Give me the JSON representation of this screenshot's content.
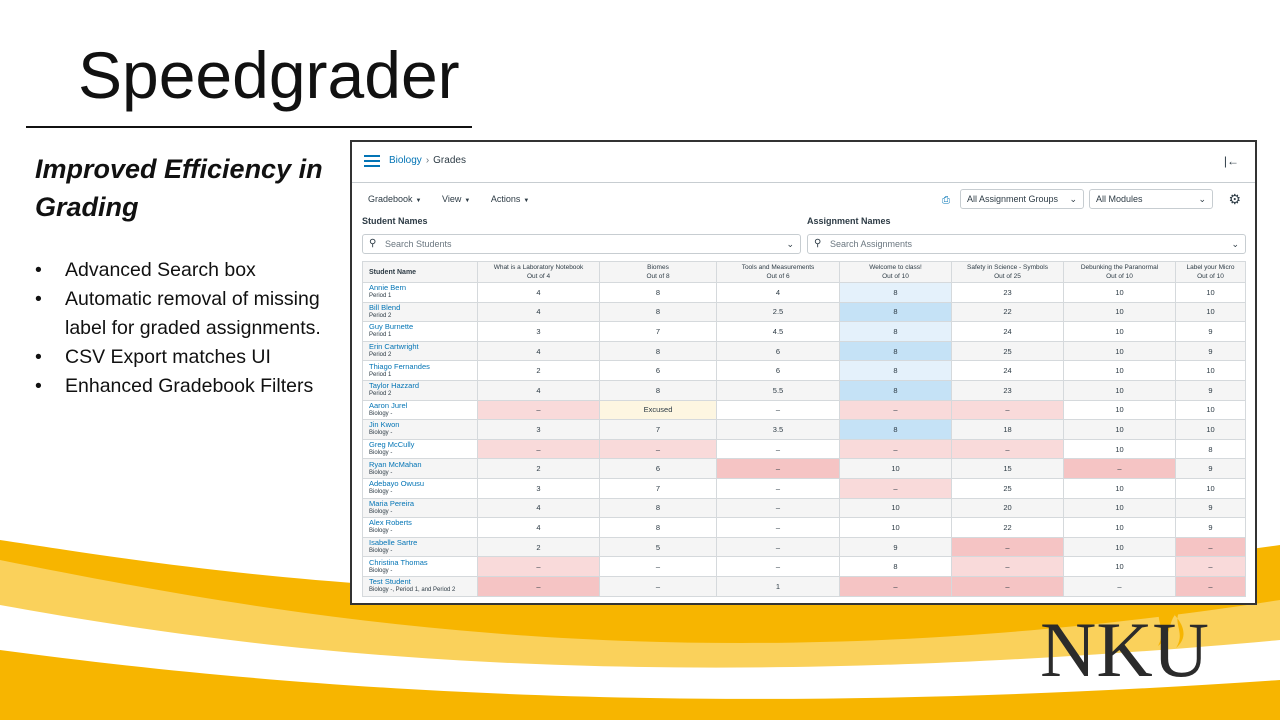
{
  "slide": {
    "title": "Speedgrader",
    "subtitle": "Improved Efficiency in Grading",
    "bullets": [
      "Advanced Search box",
      "Automatic removal of missing label for graded assignments.",
      "CSV Export matches UI",
      "Enhanced Gradebook Filters"
    ],
    "logo_text": "NKU",
    "colors": {
      "gold": "#F7B500",
      "logo": "#2b2b2b"
    }
  },
  "app": {
    "breadcrumb": {
      "course": "Biology",
      "separator": "›",
      "page": "Grades"
    },
    "toolbar": {
      "gradebook": "Gradebook",
      "view": "View",
      "actions": "Actions"
    },
    "filters": {
      "assignment_groups": "All Assignment Groups",
      "modules": "All Modules"
    },
    "student_names_label": "Student Names",
    "assignment_names_label": "Assignment Names",
    "search_students_placeholder": "Search Students",
    "search_assignments_placeholder": "Search Assignments",
    "colors": {
      "link": "#0374b5",
      "late": "#f9dada",
      "missing": "#f5c4c4",
      "excused": "#fdf6e1",
      "selected_col": "#c5e2f6"
    }
  },
  "gradebook": {
    "student_header": "Student Name",
    "columns": [
      {
        "name": "What is a Laboratory Notebook",
        "points": "Out of 4"
      },
      {
        "name": "Biomes",
        "points": "Out of 8"
      },
      {
        "name": "Tools and Measurements",
        "points": "Out of 6"
      },
      {
        "name": "Welcome to class!",
        "points": "Out of 10"
      },
      {
        "name": "Safety in Science - Symbols",
        "points": "Out of 25"
      },
      {
        "name": "Debunking the Paranormal",
        "points": "Out of 10"
      },
      {
        "name": "Label your Micro",
        "points": "Out of 10"
      }
    ],
    "rows": [
      {
        "name": "Annie Bern",
        "section": "Period 1",
        "grades": [
          "4",
          "8",
          "4",
          "8",
          "23",
          "10",
          "10"
        ],
        "states": [
          "",
          "",
          "",
          "light",
          "",
          "",
          ""
        ]
      },
      {
        "name": "Bill Blend",
        "section": "Period 2",
        "grades": [
          "4",
          "8",
          "2.5",
          "8",
          "22",
          "10",
          "10"
        ],
        "states": [
          "",
          "",
          "",
          "blue",
          "",
          "",
          ""
        ]
      },
      {
        "name": "Guy Burnette",
        "section": "Period 1",
        "grades": [
          "3",
          "7",
          "4.5",
          "8",
          "24",
          "10",
          "9"
        ],
        "states": [
          "",
          "",
          "",
          "light",
          "",
          "",
          ""
        ]
      },
      {
        "name": "Erin Cartwright",
        "section": "Period 2",
        "grades": [
          "4",
          "8",
          "6",
          "8",
          "25",
          "10",
          "9"
        ],
        "states": [
          "",
          "",
          "",
          "blue",
          "",
          "",
          ""
        ]
      },
      {
        "name": "Thiago Fernandes",
        "section": "Period 1",
        "grades": [
          "2",
          "6",
          "6",
          "8",
          "24",
          "10",
          "10"
        ],
        "states": [
          "",
          "",
          "",
          "light",
          "",
          "",
          ""
        ]
      },
      {
        "name": "Taylor Hazzard",
        "section": "Period 2",
        "grades": [
          "4",
          "8",
          "5.5",
          "8",
          "23",
          "10",
          "9"
        ],
        "states": [
          "",
          "",
          "",
          "blue",
          "",
          "",
          ""
        ]
      },
      {
        "name": "Aaron Jurel",
        "section": "Biology -",
        "grades": [
          "–",
          "Excused",
          "–",
          "–",
          "–",
          "10",
          "10"
        ],
        "states": [
          "late",
          "excused",
          "",
          "late",
          "late",
          "",
          ""
        ]
      },
      {
        "name": "Jin Kwon",
        "section": "Biology -",
        "grades": [
          "3",
          "7",
          "3.5",
          "8",
          "18",
          "10",
          "10"
        ],
        "states": [
          "",
          "",
          "",
          "blue",
          "",
          "",
          ""
        ]
      },
      {
        "name": "Greg McCully",
        "section": "Biology -",
        "grades": [
          "–",
          "–",
          "–",
          "–",
          "–",
          "10",
          "8"
        ],
        "states": [
          "late",
          "late",
          "",
          "late",
          "late",
          "",
          ""
        ]
      },
      {
        "name": "Ryan McMahan",
        "section": "Biology -",
        "grades": [
          "2",
          "6",
          "–",
          "10",
          "15",
          "–",
          "9"
        ],
        "states": [
          "",
          "",
          "missing",
          "",
          "",
          "missing",
          ""
        ]
      },
      {
        "name": "Adebayo Owusu",
        "section": "Biology -",
        "grades": [
          "3",
          "7",
          "–",
          "–",
          "25",
          "10",
          "10"
        ],
        "states": [
          "",
          "",
          "",
          "late",
          "",
          "",
          ""
        ]
      },
      {
        "name": "Maria Pereira",
        "section": "Biology -",
        "grades": [
          "4",
          "8",
          "–",
          "10",
          "20",
          "10",
          "9"
        ],
        "states": [
          "",
          "",
          "",
          "",
          "",
          "",
          ""
        ]
      },
      {
        "name": "Alex Roberts",
        "section": "Biology -",
        "grades": [
          "4",
          "8",
          "–",
          "10",
          "22",
          "10",
          "9"
        ],
        "states": [
          "",
          "",
          "",
          "",
          "",
          "",
          ""
        ]
      },
      {
        "name": "Isabelle Sartre",
        "section": "Biology -",
        "grades": [
          "2",
          "5",
          "–",
          "9",
          "–",
          "10",
          "–"
        ],
        "states": [
          "",
          "",
          "",
          "",
          "missing",
          "",
          "missing"
        ]
      },
      {
        "name": "Christina Thomas",
        "section": "Biology -",
        "grades": [
          "–",
          "–",
          "–",
          "8",
          "–",
          "10",
          "–"
        ],
        "states": [
          "late",
          "",
          "",
          "",
          "late",
          "",
          "late"
        ]
      },
      {
        "name": "Test Student",
        "section": "Biology -, Period 1, and Period 2",
        "grades": [
          "–",
          "–",
          "1",
          "–",
          "–",
          "–",
          "–"
        ],
        "states": [
          "missing",
          "",
          "",
          "missing",
          "missing",
          "",
          "missing"
        ]
      }
    ]
  }
}
